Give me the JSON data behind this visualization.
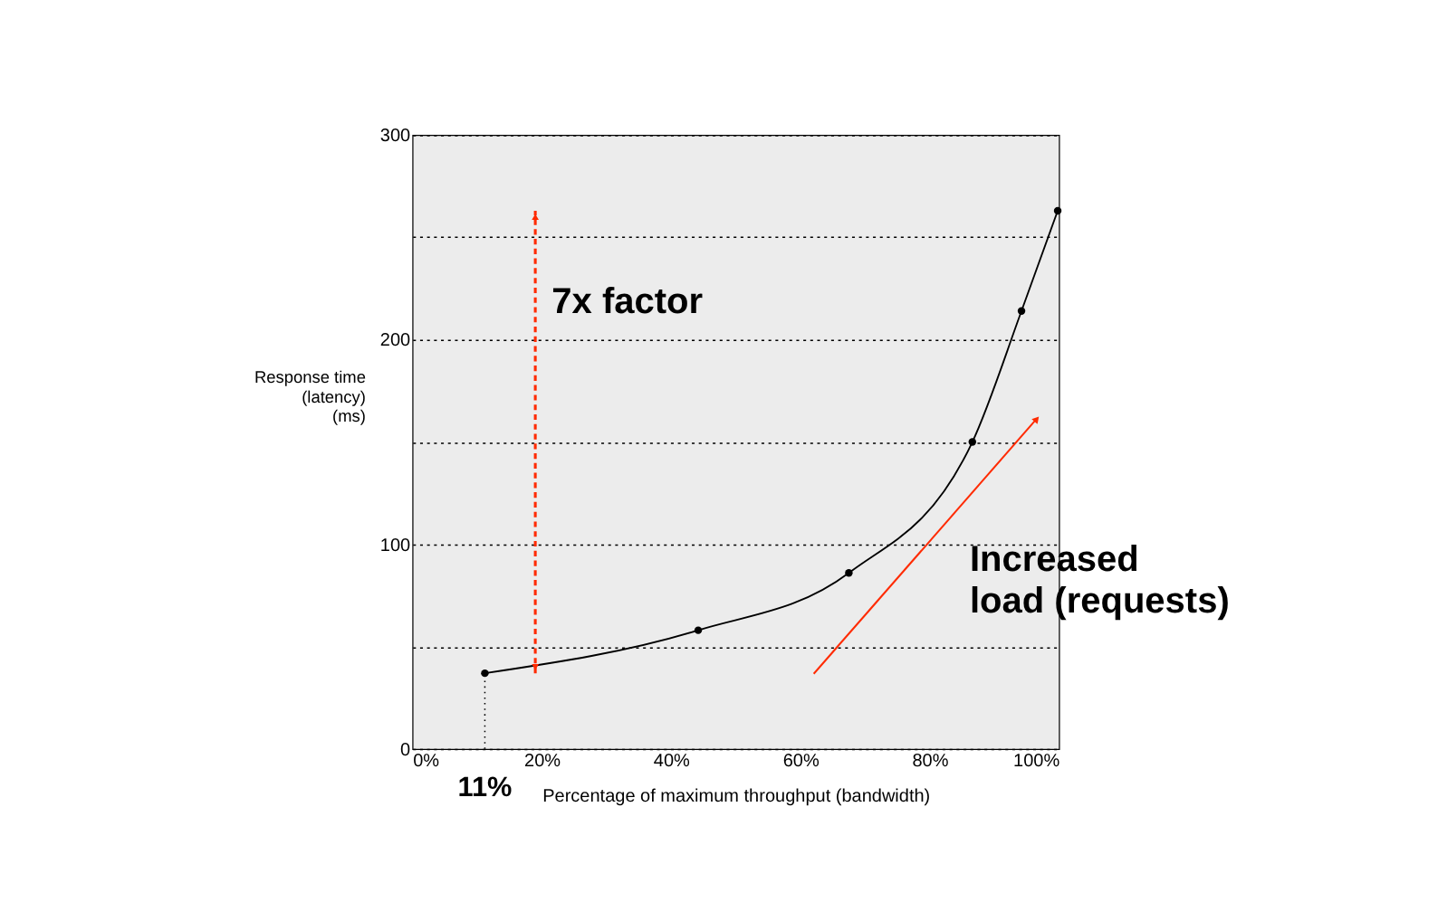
{
  "chart_data": {
    "type": "line",
    "xlabel": "Percentage of maximum throughput (bandwidth)",
    "ylabel": "Response time\n(latency)\n(ms)",
    "x": [
      11.2,
      44.2,
      67.5,
      86.6,
      94.2,
      99.8
    ],
    "series": [
      {
        "color": "#000000",
        "values": [
          37,
          58,
          86,
          150,
          214,
          263
        ]
      }
    ],
    "marker": "circle",
    "line_style": "solid",
    "grid": "y",
    "xlim": [
      0,
      100
    ],
    "xticks": [
      {
        "value": 0,
        "label": "0%"
      },
      {
        "value": 20,
        "label": "20%"
      },
      {
        "value": 40,
        "label": "40%"
      },
      {
        "value": 60,
        "label": "60%"
      },
      {
        "value": 80,
        "label": "80%"
      },
      {
        "value": 100,
        "label": "100%"
      }
    ],
    "ylim": [
      0,
      300
    ],
    "yticks": [
      0,
      {
        "value": 50,
        "label": null
      },
      100,
      {
        "value": 150,
        "label": null
      },
      200,
      {
        "value": 250,
        "label": null
      },
      300
    ],
    "ref_lines": [
      {
        "axis": "x",
        "value": 11.2,
        "label": "11%",
        "line_style": "dotted",
        "color": "#000000"
      }
    ],
    "annotations": [
      "7x factor",
      "Increased\nload (requests)"
    ]
  }
}
